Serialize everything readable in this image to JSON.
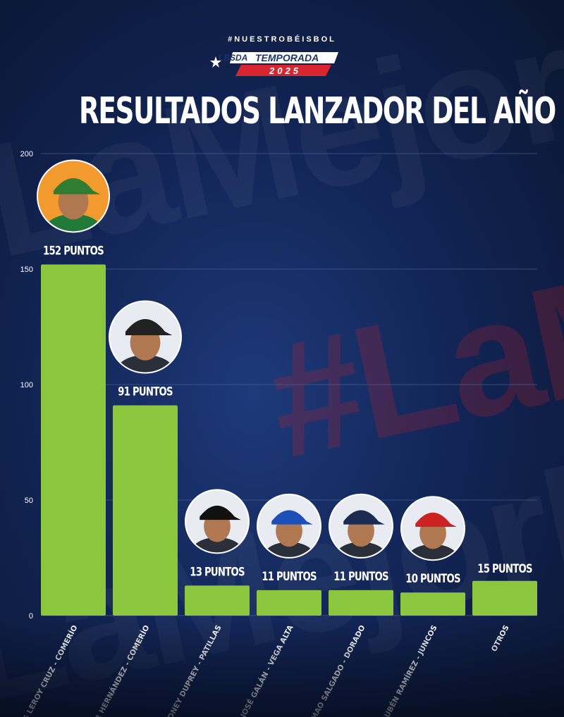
{
  "header": {
    "hashtag": "#NUESTROBÉISBOL",
    "logo_text": "LBSDA",
    "logo_season_word": "TEMPORADA",
    "logo_year": "2025",
    "title": "RESULTADOS LANZADOR DEL AÑO"
  },
  "background": {
    "watermark_words": [
      "LaMejorLiga",
      "#LaM",
      "LaMejorLi"
    ]
  },
  "colors": {
    "bar": "#8cc63f",
    "grid": "#4d6a9e",
    "text": "#ffffff",
    "accent_red": "#d7262f"
  },
  "chart_data": {
    "type": "bar",
    "categories": [
      "LUIS LEROY CRUZ - COMERÍO",
      "HÉCTOR HERNÁNDEZ - COMERÍO",
      "SIDNEY DUPREY - PATILLAS",
      "JOSÉ GALÁN - VEGA ALTA",
      "MAO SALGADO - DORADO",
      "RUBÉN RAMÍREZ - JUNCOS",
      "OTROS"
    ],
    "values": [
      152,
      91,
      13,
      11,
      11,
      10,
      15
    ],
    "data_labels": [
      "152 PUNTOS",
      "91 PUNTOS",
      "13 PUNTOS",
      "11 PUNTOS",
      "11 PUNTOS",
      "10 PUNTOS",
      "15 PUNTOS"
    ],
    "yticks": [
      "0",
      "50",
      "100",
      "150",
      "200"
    ],
    "ylim": [
      0,
      200
    ],
    "grid": true,
    "legend": "none",
    "avatars": [
      "yes",
      "yes",
      "yes",
      "yes",
      "yes",
      "yes",
      "no"
    ],
    "cap_colors": [
      "#2e7d32",
      "#222222",
      "#111111",
      "#1d4fb8",
      "#1a2a50",
      "#cc2222",
      ""
    ]
  }
}
